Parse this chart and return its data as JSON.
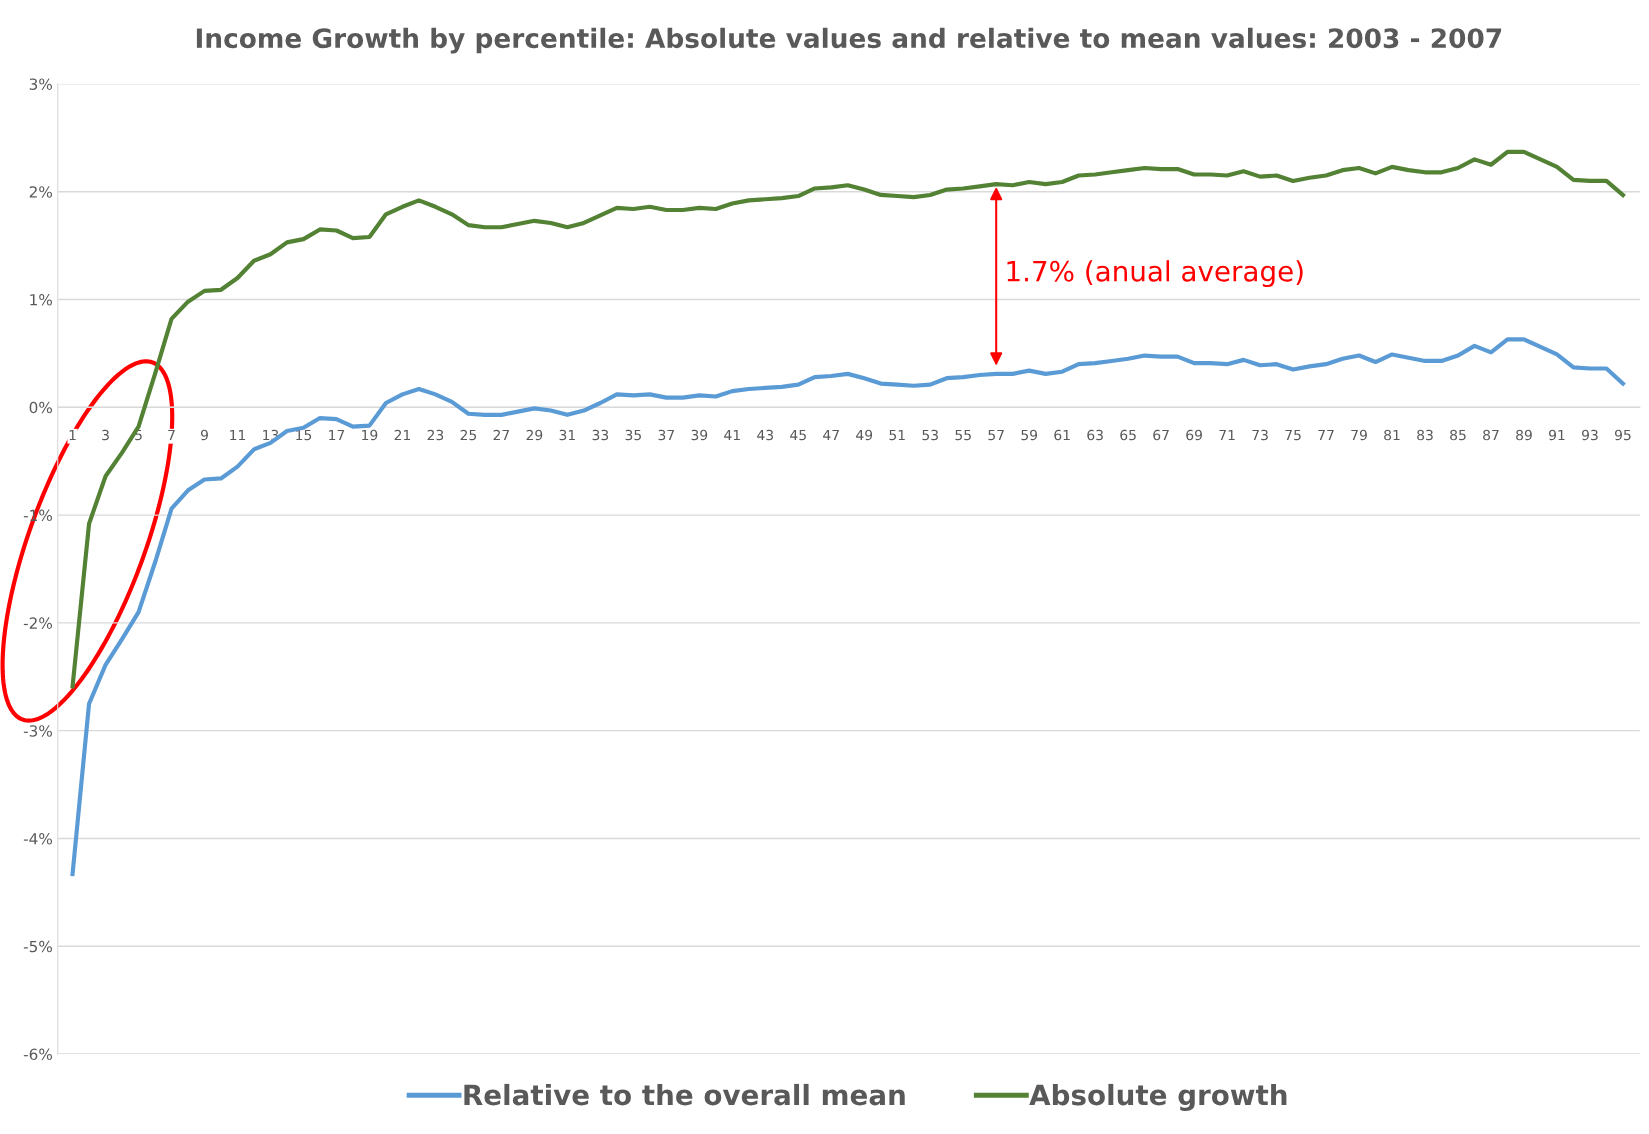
{
  "chart_data": {
    "type": "line",
    "title": "Income Growth by percentile: Absolute values and relative to mean values: 2003 - 2007",
    "categories": [
      "1",
      null,
      "3",
      null,
      "5",
      null,
      "7",
      null,
      "9",
      null,
      "11",
      null,
      "13",
      null,
      "15",
      null,
      "17",
      null,
      "19",
      null,
      "21",
      null,
      "23",
      null,
      "25",
      null,
      "27",
      null,
      "29",
      null,
      "31",
      null,
      "33",
      null,
      "35",
      null,
      "37",
      null,
      "39",
      null,
      "41",
      null,
      "43",
      null,
      "45",
      null,
      "47",
      null,
      "49",
      null,
      "51",
      null,
      "53",
      null,
      "55",
      null,
      "57",
      null,
      "59",
      null,
      "61",
      null,
      "63",
      null,
      "65",
      null,
      "67",
      null,
      "69",
      null,
      "71",
      null,
      "73",
      null,
      "75",
      null,
      "77",
      null,
      "79",
      null,
      "81",
      null,
      "83",
      null,
      "85",
      null,
      "87",
      null,
      "89",
      null,
      "91",
      null,
      "93",
      null,
      "95"
    ],
    "series": [
      {
        "name": "Relative to the overall mean",
        "color": "#5b9bd5",
        "values": [
          -4.33,
          -2.75,
          -2.39,
          -2.15,
          -1.9,
          -1.44,
          -0.94,
          -0.77,
          -0.67,
          -0.66,
          -0.55,
          -0.39,
          -0.33,
          -0.22,
          -0.19,
          -0.1,
          -0.11,
          -0.18,
          -0.17,
          0.04,
          0.12,
          0.17,
          0.12,
          0.05,
          -0.06,
          -0.07,
          -0.07,
          -0.04,
          -0.01,
          -0.03,
          -0.07,
          -0.03,
          0.04,
          0.12,
          0.11,
          0.12,
          0.09,
          0.09,
          0.11,
          0.1,
          0.15,
          0.17,
          0.18,
          0.19,
          0.21,
          0.28,
          0.29,
          0.31,
          0.27,
          0.22,
          0.21,
          0.2,
          0.21,
          0.27,
          0.28,
          0.3,
          0.31,
          0.31,
          0.34,
          0.31,
          0.33,
          0.4,
          0.41,
          0.43,
          0.45,
          0.48,
          0.47,
          0.47,
          0.41,
          0.41,
          0.4,
          0.44,
          0.39,
          0.4,
          0.35,
          0.38,
          0.4,
          0.45,
          0.48,
          0.42,
          0.49,
          0.46,
          0.43,
          0.43,
          0.48,
          0.57,
          0.51,
          0.63,
          0.63,
          0.56,
          0.49,
          0.37,
          0.36,
          0.36,
          0.22
        ]
      },
      {
        "name": "Absolute growth",
        "color": "#548235",
        "values": [
          -2.59,
          -1.08,
          -0.64,
          -0.42,
          -0.18,
          0.31,
          0.82,
          0.98,
          1.08,
          1.09,
          1.2,
          1.36,
          1.42,
          1.53,
          1.56,
          1.65,
          1.64,
          1.57,
          1.58,
          1.79,
          1.86,
          1.92,
          1.86,
          1.79,
          1.69,
          1.67,
          1.67,
          1.7,
          1.73,
          1.71,
          1.67,
          1.71,
          1.78,
          1.85,
          1.84,
          1.86,
          1.83,
          1.83,
          1.85,
          1.84,
          1.89,
          1.92,
          1.93,
          1.94,
          1.96,
          2.03,
          2.04,
          2.06,
          2.02,
          1.97,
          1.96,
          1.95,
          1.97,
          2.02,
          2.03,
          2.05,
          2.07,
          2.06,
          2.09,
          2.07,
          2.09,
          2.15,
          2.16,
          2.18,
          2.2,
          2.22,
          2.21,
          2.21,
          2.16,
          2.16,
          2.15,
          2.19,
          2.14,
          2.15,
          2.1,
          2.13,
          2.15,
          2.2,
          2.22,
          2.17,
          2.23,
          2.2,
          2.18,
          2.18,
          2.22,
          2.3,
          2.25,
          2.37,
          2.37,
          2.3,
          2.23,
          2.11,
          2.1,
          2.1,
          1.97
        ]
      }
    ],
    "ylim": [
      -6,
      3
    ],
    "yticks": [
      {
        "value": -6,
        "label": "-6%"
      },
      {
        "value": -5,
        "label": "-5%"
      },
      {
        "value": -4,
        "label": "-4%"
      },
      {
        "value": -3,
        "label": "-3%"
      },
      {
        "value": -2,
        "label": "-2%"
      },
      {
        "value": -1,
        "label": "-1%"
      },
      {
        "value": 0,
        "label": "0%"
      },
      {
        "value": 1,
        "label": "1%"
      },
      {
        "value": 2,
        "label": "2%"
      },
      {
        "value": 3,
        "label": "3%"
      }
    ],
    "annotations": [
      "1.7% (anual average)"
    ],
    "grid": "y",
    "legend": "bottom",
    "marker": "none",
    "line_style": "solid"
  }
}
